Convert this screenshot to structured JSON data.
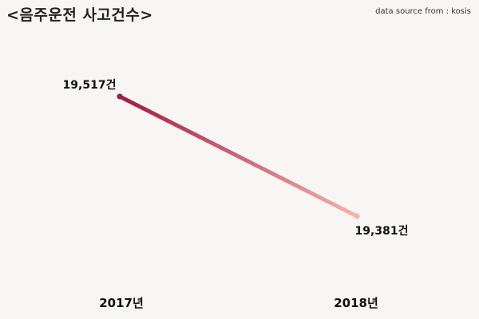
{
  "chart_data": {
    "type": "line",
    "title": "<음주운전 사고건수>",
    "source": "data source from : kosis",
    "categories": [
      "2017년",
      "2018년"
    ],
    "values": [
      19517,
      19381
    ],
    "value_labels": [
      "19,517건",
      "19,381건"
    ],
    "xlabel": "",
    "ylabel": "",
    "grid": false,
    "legend": "none",
    "line_gradient": [
      "#a8173f",
      "#f5b3aa"
    ],
    "background": "#f8f6f5"
  }
}
